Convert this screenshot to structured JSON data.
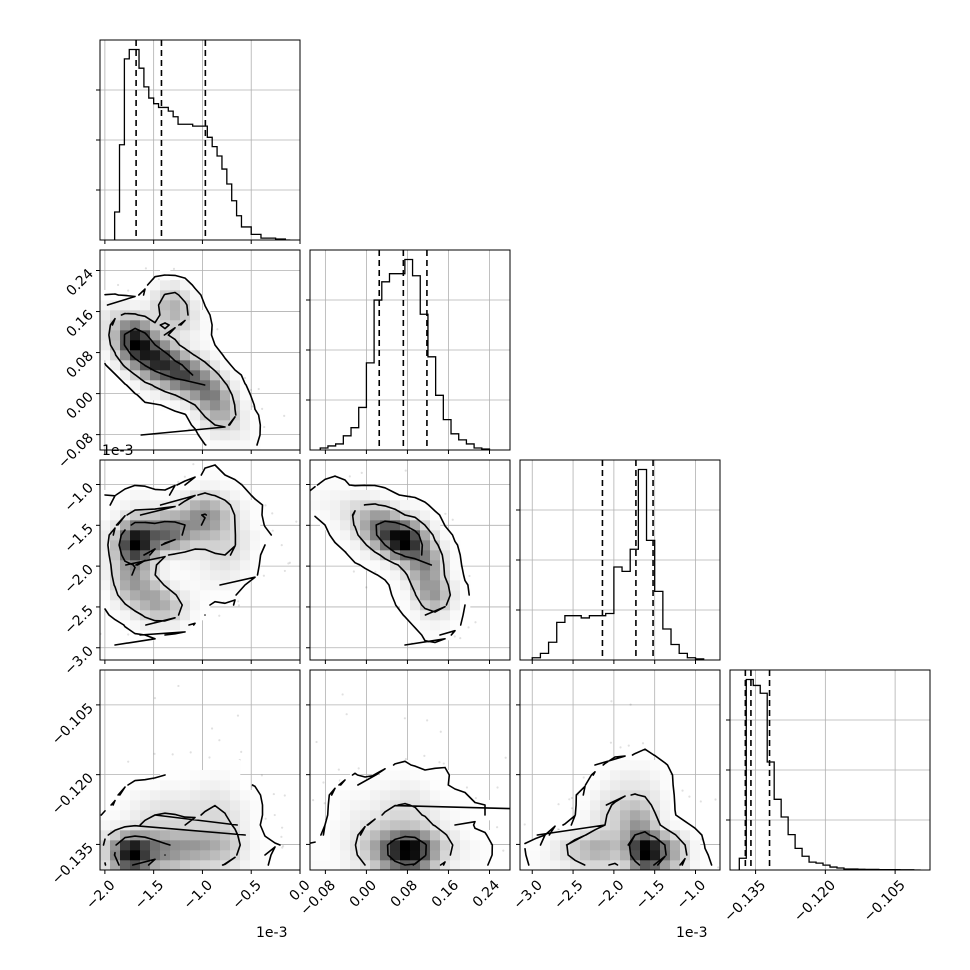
{
  "chart_data": {
    "type": "corner",
    "grid": true,
    "parameters": [
      {
        "index": 0,
        "range": [
          -0.00205,
          0.0
        ],
        "ticks": [
          -0.002,
          -0.0015,
          -0.001,
          -0.0005,
          0.0
        ],
        "tick_labels": [
          "−2.0",
          "−1.5",
          "−1.0",
          "−0.5",
          "0.0"
        ],
        "offset_text": "1e-3",
        "quantiles": [
          -0.00168,
          -0.00142,
          -0.00097
        ]
      },
      {
        "index": 1,
        "range": [
          -0.11,
          0.28
        ],
        "ticks": [
          -0.08,
          0.0,
          0.08,
          0.16,
          0.24
        ],
        "tick_labels": [
          "−0.08",
          "0.00",
          "0.08",
          "0.16",
          "0.24"
        ],
        "offset_text": "",
        "quantiles": [
          0.025,
          0.072,
          0.118
        ]
      },
      {
        "index": 2,
        "range": [
          -0.00315,
          -0.0007
        ],
        "ticks": [
          -0.003,
          -0.0025,
          -0.002,
          -0.0015,
          -0.001
        ],
        "tick_labels": [
          "−3.0",
          "−2.5",
          "−2.0",
          "−1.5",
          "−1.0"
        ],
        "offset_text": "1e-3",
        "quantiles": [
          -0.00214,
          -0.00173,
          -0.00152
        ]
      },
      {
        "index": 3,
        "range": [
          -0.1405,
          -0.0975
        ],
        "ticks": [
          -0.135,
          -0.12,
          -0.105
        ],
        "tick_labels": [
          "−0.135",
          "−0.120",
          "−0.105"
        ],
        "offset_text": "",
        "quantiles": [
          -0.1372,
          -0.136,
          -0.132
        ]
      }
    ],
    "histograms": [
      {
        "param": 0,
        "bin_edges": [
          -0.0019,
          -0.00185,
          -0.0018,
          -0.00175,
          -0.0017,
          -0.00165,
          -0.0016,
          -0.00155,
          -0.0015,
          -0.00145,
          -0.0014,
          -0.00135,
          -0.0013,
          -0.00125,
          -0.0012,
          -0.00115,
          -0.0011,
          -0.00105,
          -0.001,
          -0.00095,
          -0.0009,
          -0.00085,
          -0.0008,
          -0.00075,
          -0.0007,
          -0.00065,
          -0.0006,
          -0.00055,
          -0.0005,
          -0.00045,
          -0.0004,
          -0.00035,
          -0.0003,
          -0.00025,
          -0.0002,
          -0.00015,
          -0.0001
        ],
        "counts": [
          0.15,
          0.51,
          0.97,
          1.02,
          1.02,
          0.92,
          0.82,
          0.76,
          0.73,
          0.71,
          0.71,
          0.69,
          0.66,
          0.62,
          0.62,
          0.62,
          0.61,
          0.61,
          0.61,
          0.55,
          0.5,
          0.45,
          0.38,
          0.3,
          0.21,
          0.13,
          0.07,
          0.07,
          0.03,
          0.03,
          0.01,
          0.01,
          0.01,
          0.005,
          0.005,
          0.0
        ]
      },
      {
        "param": 1,
        "bin_edges": [
          -0.09,
          -0.075,
          -0.06,
          -0.045,
          -0.03,
          -0.015,
          0.0,
          0.015,
          0.03,
          0.045,
          0.06,
          0.075,
          0.09,
          0.105,
          0.12,
          0.135,
          0.15,
          0.165,
          0.18,
          0.195,
          0.21,
          0.225,
          0.24
        ],
        "counts": [
          0.01,
          0.02,
          0.03,
          0.07,
          0.11,
          0.21,
          0.43,
          0.74,
          0.83,
          0.87,
          0.87,
          0.94,
          0.86,
          0.67,
          0.46,
          0.27,
          0.15,
          0.08,
          0.05,
          0.03,
          0.01,
          0.005
        ]
      },
      {
        "param": 2,
        "bin_edges": [
          -0.003,
          -0.0029,
          -0.0028,
          -0.0027,
          -0.0026,
          -0.0025,
          -0.0024,
          -0.0023,
          -0.0022,
          -0.0021,
          -0.002,
          -0.0019,
          -0.0018,
          -0.0017,
          -0.0016,
          -0.0015,
          -0.0014,
          -0.0013,
          -0.0012,
          -0.0011,
          -0.001,
          -0.0009
        ],
        "counts": [
          0.01,
          0.03,
          0.08,
          0.17,
          0.2,
          0.2,
          0.19,
          0.2,
          0.2,
          0.21,
          0.42,
          0.4,
          0.5,
          0.86,
          0.54,
          0.31,
          0.14,
          0.07,
          0.03,
          0.01,
          0.005
        ]
      },
      {
        "param": 3,
        "bin_edges": [
          -0.1385,
          -0.137,
          -0.1355,
          -0.134,
          -0.1325,
          -0.131,
          -0.1295,
          -0.128,
          -0.1265,
          -0.125,
          -0.1235,
          -0.122,
          -0.1205,
          -0.119,
          -0.1175,
          -0.116,
          -0.1145,
          -0.113,
          -0.1115,
          -0.11,
          -0.1085,
          -0.107,
          -0.1055,
          -0.104,
          -0.1025,
          -0.101,
          -0.0995
        ],
        "counts": [
          0.06,
          0.97,
          0.94,
          0.9,
          0.55,
          0.36,
          0.27,
          0.18,
          0.11,
          0.07,
          0.04,
          0.035,
          0.025,
          0.015,
          0.01,
          0.005,
          0.005,
          0.004,
          0.003,
          0.003,
          0.002,
          0.002,
          0.002,
          0.001,
          0.001,
          0.0
        ]
      }
    ],
    "density_panels": [
      {
        "x": 0,
        "y": 1,
        "shape": "curved band from upper-left to lower-right",
        "peak": [
          -0.00168,
          0.1
        ]
      },
      {
        "x": 0,
        "y": 2,
        "shape": "hook opening to the right",
        "peak": [
          -0.00168,
          -0.0017
        ]
      },
      {
        "x": 1,
        "y": 2,
        "shape": "diagonal band from upper-left to lower-right",
        "peak": [
          0.075,
          -0.0017
        ]
      },
      {
        "x": 0,
        "y": 3,
        "shape": "horizontal band near bottom",
        "peak": [
          -0.0017,
          -0.1365
        ]
      },
      {
        "x": 1,
        "y": 3,
        "shape": "oval near bottom",
        "peak": [
          0.08,
          -0.1365
        ]
      },
      {
        "x": 2,
        "y": 3,
        "shape": "band rising to the right",
        "peak": [
          -0.0016,
          -0.1365
        ]
      }
    ]
  }
}
